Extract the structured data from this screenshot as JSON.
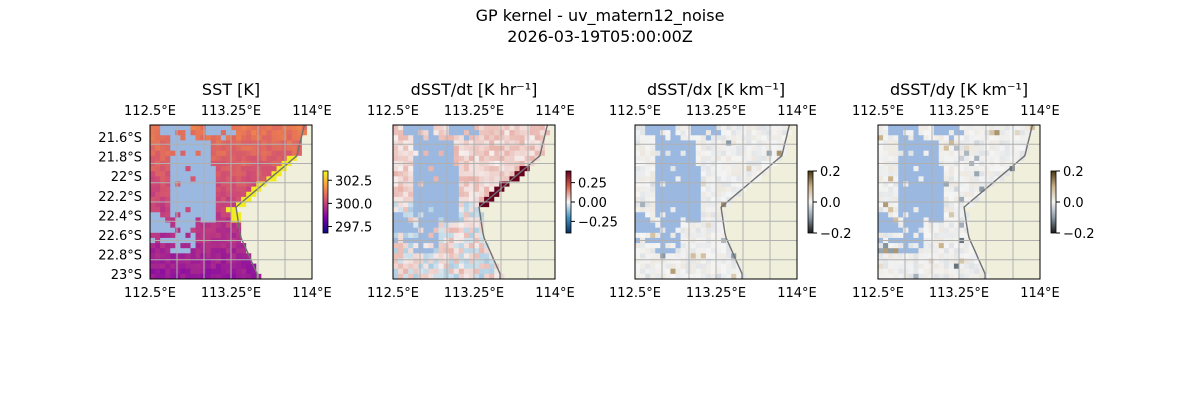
{
  "figure": {
    "title": "GP kernel - uv_matern12_noise",
    "subtitle": "2026-03-19T05:00:00Z"
  },
  "colors": {
    "land": "#efefdb",
    "missing": "#9ab8e0",
    "coast": "#707070",
    "grid": "#b0b0b0"
  },
  "chart_data": [
    {
      "type": "heatmap",
      "title": "SST [K]",
      "xlabel": "",
      "ylabel": "",
      "xlim": [
        112.5,
        114.0
      ],
      "ylim": [
        -23.0,
        -21.5
      ],
      "x_ticks": [
        "112.5°E",
        "113.25°E",
        "114°E"
      ],
      "y_ticks": [
        "21.6°S",
        "21.8°S",
        "22°S",
        "22.2°S",
        "22.4°S",
        "22.6°S",
        "22.8°S",
        "23°S"
      ],
      "show_y_ticks": true,
      "grid": true,
      "colormap": "plasma",
      "clim": [
        296.8,
        303.5
      ],
      "colorbar_ticks": [
        302.5,
        300.0,
        297.5
      ],
      "colorbar_labels": [
        "302.5",
        "300.0",
        "297.5"
      ],
      "value_north": 301.2,
      "value_south": 298.9,
      "coastal_warm_value": 303.3
    },
    {
      "type": "heatmap",
      "title": "dSST/dt [K hr⁻¹]",
      "xlabel": "",
      "ylabel": "",
      "xlim": [
        112.5,
        114.0
      ],
      "ylim": [
        -23.0,
        -21.5
      ],
      "x_ticks": [
        "112.5°E",
        "113.25°E",
        "114°E"
      ],
      "show_y_ticks": false,
      "grid": true,
      "colormap": "RdBu_r",
      "clim": [
        -0.4,
        0.4
      ],
      "colorbar_ticks": [
        0.25,
        0.0,
        -0.25
      ],
      "colorbar_labels": [
        "0.25",
        "0.00",
        "−0.25"
      ],
      "typical_value": 0.05,
      "coastal_peak_value": 0.4
    },
    {
      "type": "heatmap",
      "title": "dSST/dx [K km⁻¹]",
      "xlabel": "",
      "ylabel": "",
      "xlim": [
        112.5,
        114.0
      ],
      "ylim": [
        -23.0,
        -21.5
      ],
      "x_ticks": [
        "112.5°E",
        "113.25°E",
        "114°E"
      ],
      "show_y_ticks": false,
      "grid": true,
      "colormap": "BrBG-like (brown-white-gray)",
      "clim": [
        -0.2,
        0.2
      ],
      "colorbar_ticks": [
        0.2,
        0.0,
        -0.2
      ],
      "colorbar_labels": [
        "0.2",
        "0.0",
        "−0.2"
      ],
      "typical_value": 0.0
    },
    {
      "type": "heatmap",
      "title": "dSST/dy [K km⁻¹]",
      "xlabel": "",
      "ylabel": "",
      "xlim": [
        112.5,
        114.0
      ],
      "ylim": [
        -23.0,
        -21.5
      ],
      "x_ticks": [
        "112.5°E",
        "113.25°E",
        "114°E"
      ],
      "show_y_ticks": false,
      "grid": true,
      "colormap": "brown-white-gray",
      "clim": [
        -0.2,
        0.2
      ],
      "colorbar_ticks": [
        0.2,
        0.0,
        -0.2
      ],
      "colorbar_labels": [
        "0.2",
        "0.0",
        "−0.2"
      ],
      "typical_value": 0.0
    }
  ]
}
